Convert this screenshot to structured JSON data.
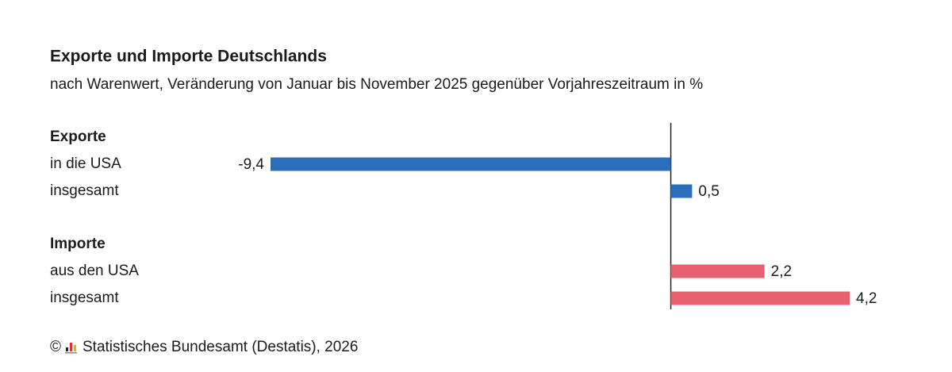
{
  "chart_data": {
    "type": "bar",
    "orientation": "horizontal",
    "title": "Exporte und Importe Deutschlands",
    "subtitle": "nach Warenwert, Veränderung von Januar bis November 2025 gegenüber Vorjahreszeitraum in %",
    "groups": [
      {
        "name": "Exporte",
        "color": "#2a6ebb",
        "categories": [
          "in die USA",
          "insgesamt"
        ],
        "values": [
          -9.4,
          0.5
        ],
        "value_labels": [
          "-9,4",
          "0,5"
        ]
      },
      {
        "name": "Importe",
        "color": "#e8606f",
        "categories": [
          "aus den USA",
          "insgesamt"
        ],
        "values": [
          2.2,
          4.2
        ],
        "value_labels": [
          "2,2",
          "4,2"
        ]
      }
    ],
    "copyright": "©",
    "source": "Statistisches Bundesamt (Destatis), 2026"
  }
}
